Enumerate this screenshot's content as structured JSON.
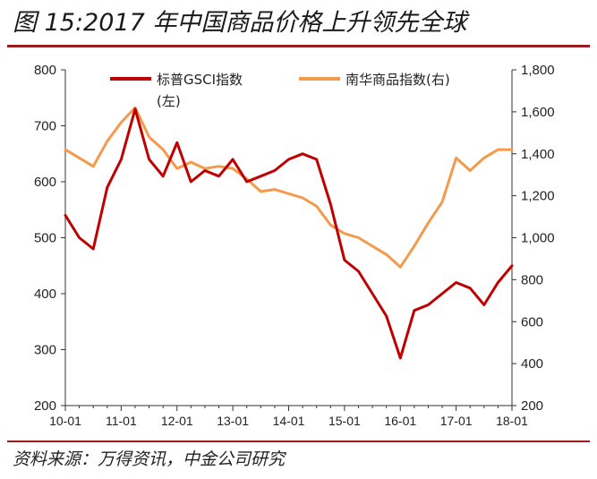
{
  "header": {
    "title": "图 15:2017 年中国商品价格上升领先全球"
  },
  "footer": {
    "source": "资料来源：万得资讯，中金公司研究"
  },
  "colors": {
    "accent": "#9b1c1c",
    "gsci": "#c00000",
    "nanhua": "#f59a4c"
  },
  "chart_data": {
    "type": "line",
    "title": "",
    "x": [
      "10-01",
      "10-04",
      "10-07",
      "10-10",
      "11-01",
      "11-04",
      "11-07",
      "11-10",
      "12-01",
      "12-04",
      "12-07",
      "12-10",
      "13-01",
      "13-04",
      "13-07",
      "13-10",
      "14-01",
      "14-04",
      "14-07",
      "14-10",
      "15-01",
      "15-04",
      "15-07",
      "15-10",
      "16-01",
      "16-04",
      "16-07",
      "16-10",
      "17-01",
      "17-04",
      "17-07",
      "17-10",
      "18-01"
    ],
    "x_tick_labels": [
      "10-01",
      "11-01",
      "12-01",
      "13-01",
      "14-01",
      "15-01",
      "16-01",
      "17-01",
      "18-01"
    ],
    "y_left": {
      "ticks": [
        "200",
        "300",
        "400",
        "500",
        "600",
        "700",
        "800"
      ],
      "ylim": [
        200,
        800
      ]
    },
    "y_right": {
      "ticks": [
        "200",
        "400",
        "600",
        "800",
        "1,000",
        "1,200",
        "1,400",
        "1,600",
        "1,800"
      ],
      "ylim": [
        200,
        1800
      ]
    },
    "legend": {
      "placement": "top",
      "entries": [
        {
          "label": "标普GSCI指数",
          "sub": "(左)"
        },
        {
          "label": "南华商品指数(右)",
          "sub": ""
        }
      ]
    },
    "series": [
      {
        "name": "标普GSCI指数(左)",
        "axis": "left",
        "values": [
          540,
          500,
          480,
          590,
          640,
          730,
          640,
          610,
          670,
          600,
          620,
          610,
          640,
          600,
          610,
          620,
          640,
          650,
          640,
          560,
          460,
          440,
          400,
          360,
          285,
          370,
          380,
          400,
          420,
          410,
          380,
          420,
          450
        ]
      },
      {
        "name": "南华商品指数(右)",
        "axis": "right",
        "values": [
          1420,
          1380,
          1340,
          1460,
          1550,
          1620,
          1480,
          1420,
          1330,
          1360,
          1330,
          1340,
          1330,
          1280,
          1220,
          1230,
          1210,
          1190,
          1150,
          1060,
          1020,
          1000,
          960,
          920,
          860,
          960,
          1070,
          1170,
          1380,
          1320,
          1380,
          1420,
          1420
        ]
      }
    ]
  }
}
